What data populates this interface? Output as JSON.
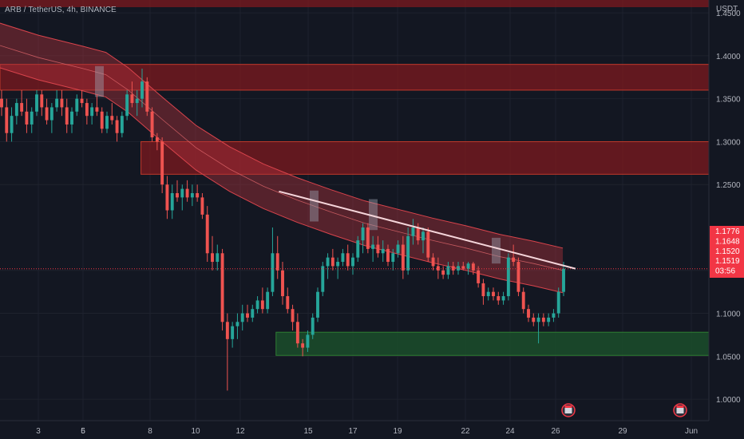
{
  "header": {
    "symbol": "ARB / TetherUS, 4h, BINANCE"
  },
  "colors": {
    "background": "#131722",
    "up": "#26a69a",
    "down": "#ef5350",
    "resistance_zone": "#7d1a1f",
    "support_zone": "#1b4d2a",
    "channel": "#b0333b",
    "trendline": "#f5d5da",
    "badge": "#f23645"
  },
  "chart_data": {
    "type": "candlestick",
    "ylabel": "USDT",
    "ylim": [
      0.975,
      1.465
    ],
    "y_ticks": [
      "1.4500",
      "1.4000",
      "1.3500",
      "1.3000",
      "1.2500",
      "1.1500",
      "1.1000",
      "1.0500",
      "1.0000"
    ],
    "x_ticks": [
      "3",
      "5",
      "6",
      "8",
      "10",
      "12",
      "15",
      "17",
      "19",
      "22",
      "24",
      "26",
      "29",
      "Jun"
    ],
    "price_labels": [
      "1.1776",
      "1.1648",
      "1.1520",
      "1.1519",
      "03:56"
    ],
    "zones": [
      {
        "kind": "resistance",
        "y_low": 1.36,
        "y_high": 1.39,
        "x_start": "3",
        "x_end": "Jun"
      },
      {
        "kind": "resistance",
        "y_low": 1.262,
        "y_high": 1.3,
        "x_start": "6",
        "x_end": "Jun"
      },
      {
        "kind": "support",
        "y_low": 1.051,
        "y_high": 1.078,
        "x_start": "12",
        "x_end": "Jun"
      }
    ],
    "trendline": {
      "from": [
        15,
        1.242
      ],
      "to": [
        27.5,
        1.152
      ]
    },
    "channel": {
      "x": [
        1.0,
        3.0,
        5.0,
        6.0,
        7.0,
        8.5,
        10.0,
        11.5,
        13.0,
        14.5,
        16.0,
        17.5,
        19.0,
        20.5,
        22.0,
        23.5,
        25.0,
        26.3
      ],
      "mid": [
        1.412,
        1.398,
        1.385,
        1.378,
        1.36,
        1.326,
        1.293,
        1.268,
        1.248,
        1.232,
        1.218,
        1.205,
        1.195,
        1.185,
        1.176,
        1.166,
        1.158,
        1.15
      ],
      "half": 0.026
    },
    "last_price": 1.1519,
    "candles": [
      [
        1.35,
        1.36,
        1.33,
        1.34
      ],
      [
        1.34,
        1.35,
        1.3,
        1.31
      ],
      [
        1.31,
        1.34,
        1.3,
        1.33
      ],
      [
        1.33,
        1.35,
        1.32,
        1.345
      ],
      [
        1.345,
        1.36,
        1.33,
        1.335
      ],
      [
        1.335,
        1.35,
        1.31,
        1.32
      ],
      [
        1.32,
        1.34,
        1.31,
        1.335
      ],
      [
        1.335,
        1.36,
        1.33,
        1.355
      ],
      [
        1.355,
        1.36,
        1.33,
        1.34
      ],
      [
        1.34,
        1.35,
        1.32,
        1.325
      ],
      [
        1.325,
        1.345,
        1.31,
        1.34
      ],
      [
        1.34,
        1.36,
        1.335,
        1.35
      ],
      [
        1.35,
        1.36,
        1.33,
        1.34
      ],
      [
        1.34,
        1.35,
        1.31,
        1.32
      ],
      [
        1.32,
        1.34,
        1.31,
        1.335
      ],
      [
        1.335,
        1.355,
        1.33,
        1.35
      ],
      [
        1.35,
        1.36,
        1.34,
        1.345
      ],
      [
        1.345,
        1.35,
        1.32,
        1.33
      ],
      [
        1.33,
        1.345,
        1.32,
        1.34
      ],
      [
        1.34,
        1.355,
        1.33,
        1.335
      ],
      [
        1.335,
        1.34,
        1.31,
        1.315
      ],
      [
        1.315,
        1.335,
        1.31,
        1.33
      ],
      [
        1.33,
        1.345,
        1.32,
        1.325
      ],
      [
        1.325,
        1.33,
        1.3,
        1.31
      ],
      [
        1.31,
        1.335,
        1.305,
        1.33
      ],
      [
        1.33,
        1.36,
        1.325,
        1.355
      ],
      [
        1.355,
        1.37,
        1.34,
        1.345
      ],
      [
        1.345,
        1.36,
        1.33,
        1.35
      ],
      [
        1.35,
        1.385,
        1.34,
        1.37
      ],
      [
        1.37,
        1.375,
        1.33,
        1.335
      ],
      [
        1.335,
        1.34,
        1.3,
        1.305
      ],
      [
        1.305,
        1.31,
        1.29,
        1.3
      ],
      [
        1.3,
        1.305,
        1.24,
        1.25
      ],
      [
        1.25,
        1.26,
        1.21,
        1.22
      ],
      [
        1.22,
        1.25,
        1.21,
        1.24
      ],
      [
        1.24,
        1.255,
        1.23,
        1.235
      ],
      [
        1.235,
        1.25,
        1.22,
        1.245
      ],
      [
        1.245,
        1.255,
        1.23,
        1.235
      ],
      [
        1.235,
        1.25,
        1.225,
        1.24
      ],
      [
        1.24,
        1.25,
        1.23,
        1.235
      ],
      [
        1.235,
        1.24,
        1.21,
        1.215
      ],
      [
        1.215,
        1.225,
        1.16,
        1.17
      ],
      [
        1.17,
        1.19,
        1.15,
        1.16
      ],
      [
        1.16,
        1.18,
        1.15,
        1.17
      ],
      [
        1.17,
        1.175,
        1.08,
        1.09
      ],
      [
        1.09,
        1.1,
        1.01,
        1.07
      ],
      [
        1.07,
        1.09,
        1.06,
        1.085
      ],
      [
        1.085,
        1.1,
        1.07,
        1.09
      ],
      [
        1.09,
        1.11,
        1.08,
        1.1
      ],
      [
        1.1,
        1.11,
        1.09,
        1.095
      ],
      [
        1.095,
        1.11,
        1.09,
        1.105
      ],
      [
        1.105,
        1.12,
        1.1,
        1.115
      ],
      [
        1.115,
        1.13,
        1.1,
        1.105
      ],
      [
        1.105,
        1.13,
        1.1,
        1.125
      ],
      [
        1.125,
        1.2,
        1.12,
        1.17
      ],
      [
        1.17,
        1.19,
        1.14,
        1.15
      ],
      [
        1.15,
        1.16,
        1.11,
        1.12
      ],
      [
        1.12,
        1.13,
        1.1,
        1.105
      ],
      [
        1.105,
        1.11,
        1.08,
        1.09
      ],
      [
        1.09,
        1.1,
        1.06,
        1.065
      ],
      [
        1.065,
        1.07,
        1.05,
        1.06
      ],
      [
        1.06,
        1.08,
        1.055,
        1.075
      ],
      [
        1.075,
        1.1,
        1.07,
        1.095
      ],
      [
        1.095,
        1.13,
        1.09,
        1.125
      ],
      [
        1.125,
        1.16,
        1.12,
        1.155
      ],
      [
        1.155,
        1.17,
        1.14,
        1.165
      ],
      [
        1.165,
        1.175,
        1.15,
        1.155
      ],
      [
        1.155,
        1.165,
        1.14,
        1.16
      ],
      [
        1.16,
        1.175,
        1.155,
        1.17
      ],
      [
        1.17,
        1.18,
        1.15,
        1.155
      ],
      [
        1.155,
        1.17,
        1.145,
        1.165
      ],
      [
        1.165,
        1.19,
        1.16,
        1.185
      ],
      [
        1.185,
        1.205,
        1.17,
        1.2
      ],
      [
        1.2,
        1.205,
        1.17,
        1.175
      ],
      [
        1.175,
        1.19,
        1.16,
        1.18
      ],
      [
        1.18,
        1.19,
        1.165,
        1.17
      ],
      [
        1.17,
        1.185,
        1.16,
        1.175
      ],
      [
        1.175,
        1.18,
        1.155,
        1.16
      ],
      [
        1.16,
        1.175,
        1.15,
        1.17
      ],
      [
        1.17,
        1.185,
        1.165,
        1.18
      ],
      [
        1.18,
        1.19,
        1.14,
        1.15
      ],
      [
        1.15,
        1.2,
        1.145,
        1.19
      ],
      [
        1.19,
        1.21,
        1.18,
        1.2
      ],
      [
        1.2,
        1.205,
        1.18,
        1.185
      ],
      [
        1.185,
        1.2,
        1.17,
        1.195
      ],
      [
        1.195,
        1.2,
        1.16,
        1.165
      ],
      [
        1.165,
        1.17,
        1.15,
        1.155
      ],
      [
        1.155,
        1.165,
        1.14,
        1.15
      ],
      [
        1.15,
        1.155,
        1.14,
        1.145
      ],
      [
        1.145,
        1.16,
        1.14,
        1.155
      ],
      [
        1.155,
        1.16,
        1.145,
        1.15
      ],
      [
        1.15,
        1.16,
        1.145,
        1.155
      ],
      [
        1.155,
        1.16,
        1.15,
        1.152
      ],
      [
        1.152,
        1.16,
        1.145,
        1.158
      ],
      [
        1.158,
        1.16,
        1.145,
        1.15
      ],
      [
        1.15,
        1.155,
        1.13,
        1.135
      ],
      [
        1.135,
        1.14,
        1.11,
        1.12
      ],
      [
        1.12,
        1.13,
        1.115,
        1.125
      ],
      [
        1.125,
        1.13,
        1.115,
        1.12
      ],
      [
        1.12,
        1.125,
        1.11,
        1.115
      ],
      [
        1.115,
        1.125,
        1.11,
        1.12
      ],
      [
        1.12,
        1.17,
        1.115,
        1.165
      ],
      [
        1.165,
        1.18,
        1.155,
        1.16
      ],
      [
        1.16,
        1.165,
        1.12,
        1.125
      ],
      [
        1.125,
        1.13,
        1.1,
        1.105
      ],
      [
        1.105,
        1.11,
        1.09,
        1.095
      ],
      [
        1.095,
        1.1,
        1.085,
        1.09
      ],
      [
        1.09,
        1.1,
        1.065,
        1.095
      ],
      [
        1.095,
        1.1,
        1.085,
        1.09
      ],
      [
        1.09,
        1.1,
        1.085,
        1.095
      ],
      [
        1.095,
        1.105,
        1.09,
        1.1
      ],
      [
        1.1,
        1.13,
        1.095,
        1.125
      ],
      [
        1.125,
        1.16,
        1.12,
        1.152
      ]
    ],
    "events": [
      {
        "kind": "calendar-event",
        "x": "26"
      },
      {
        "kind": "calendar-event",
        "x": "29"
      }
    ]
  }
}
